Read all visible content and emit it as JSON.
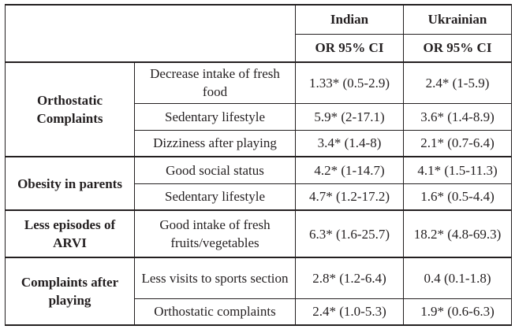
{
  "header": {
    "col_indian": "Indian",
    "col_ukrainian": "Ukrainian",
    "sub_indian": "OR 95% CI",
    "sub_ukrainian": "OR 95% CI"
  },
  "groups": [
    {
      "label": "Orthostatic Complaints",
      "rows": [
        {
          "factor": "Decrease intake of fresh food",
          "indian": "1.33* (0.5-2.9)",
          "ukrainian": "2.4* (1-5.9)"
        },
        {
          "factor": "Sedentary lifestyle",
          "indian": "5.9* (2-17.1)",
          "ukrainian": "3.6* (1.4-8.9)"
        },
        {
          "factor": "Dizziness after playing",
          "indian": "3.4* (1.4-8)",
          "ukrainian": "2.1* (0.7-6.4)"
        }
      ]
    },
    {
      "label": "Obesity in parents",
      "rows": [
        {
          "factor": "Good social status",
          "indian": "4.2* (1-14.7)",
          "ukrainian": "4.1* (1.5-11.3)"
        },
        {
          "factor": "Sedentary lifestyle",
          "indian": "4.7* (1.2-17.2)",
          "ukrainian": "1.6* (0.5-4.4)"
        }
      ]
    },
    {
      "label": "Less episodes of ARVI",
      "rows": [
        {
          "factor": "Good intake of fresh fruits/vegetables",
          "indian": "6.3* (1.6-25.7)",
          "ukrainian": "18.2* (4.8-69.3)"
        }
      ]
    },
    {
      "label": "Complaints after playing",
      "rows": [
        {
          "factor": "Less visits to sports section",
          "indian": "2.8* (1.2-6.4)",
          "ukrainian": "0.4 (0.1-1.8)"
        },
        {
          "factor": "Orthostatic complaints",
          "indian": "2.4* (1.0-5.3)",
          "ukrainian": "1.9* (0.6-6.3)"
        }
      ]
    }
  ]
}
